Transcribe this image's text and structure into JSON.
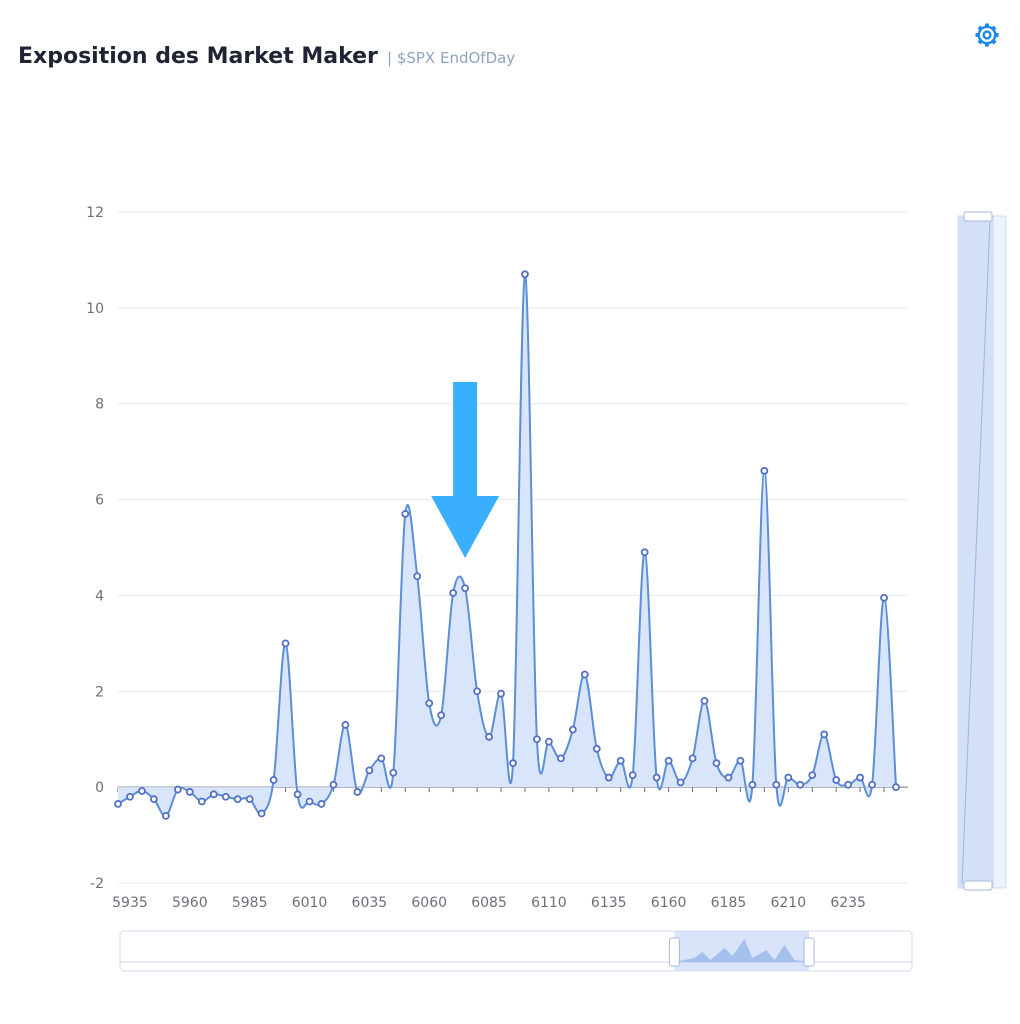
{
  "header": {
    "title": "Exposition des Market Maker",
    "subtitle": "| $SPX EndOfDay"
  },
  "toolbar": {
    "settings_icon": "gear-icon"
  },
  "colors": {
    "line": "#5b8fd6",
    "area": "#d9e5fb",
    "point_stroke": "#5470c6",
    "grid": "#e6e9f0",
    "axis": "#6e7079",
    "arrow": "#3aaeff",
    "gear": "#1e88e5"
  },
  "annotation": {
    "type": "arrow",
    "direction": "down",
    "at_x": 6075,
    "icon": "down-arrow-icon"
  },
  "chart_data": {
    "type": "area",
    "x": [
      5930,
      5935,
      5940,
      5945,
      5950,
      5955,
      5960,
      5965,
      5970,
      5975,
      5980,
      5985,
      5990,
      5995,
      6000,
      6005,
      6010,
      6015,
      6020,
      6025,
      6030,
      6035,
      6040,
      6045,
      6050,
      6055,
      6060,
      6065,
      6070,
      6075,
      6080,
      6085,
      6090,
      6095,
      6100,
      6105,
      6110,
      6115,
      6120,
      6125,
      6130,
      6135,
      6140,
      6145,
      6150,
      6155,
      6160,
      6165,
      6170,
      6175,
      6180,
      6185,
      6190,
      6195,
      6200,
      6205,
      6210,
      6215,
      6220,
      6225,
      6230,
      6235,
      6240,
      6245,
      6250,
      6255
    ],
    "values": [
      -0.35,
      -0.2,
      -0.08,
      -0.25,
      -0.6,
      -0.05,
      -0.1,
      -0.3,
      -0.15,
      -0.2,
      -0.25,
      -0.25,
      -0.55,
      0.15,
      3.0,
      -0.15,
      -0.3,
      -0.35,
      0.05,
      1.3,
      -0.1,
      0.35,
      0.6,
      0.3,
      5.7,
      4.4,
      1.75,
      1.5,
      4.05,
      4.15,
      2.0,
      1.05,
      1.95,
      0.5,
      10.7,
      1.0,
      0.95,
      0.6,
      1.2,
      2.35,
      0.8,
      0.2,
      0.55,
      0.25,
      4.9,
      0.2,
      0.55,
      0.1,
      0.6,
      1.8,
      0.5,
      0.2,
      0.55,
      0.05,
      6.6,
      0.05,
      0.2,
      0.05,
      0.25,
      1.1,
      0.15,
      0.05,
      0.2,
      0.05,
      3.95,
      0.0
    ],
    "xticks": [
      5935,
      5960,
      5985,
      6010,
      6035,
      6060,
      6085,
      6110,
      6135,
      6160,
      6185,
      6210,
      6235
    ],
    "yticks": [
      -2,
      0,
      2,
      4,
      6,
      8,
      10,
      12
    ],
    "ylim": [
      -2,
      12
    ],
    "xlim": [
      5930,
      6260
    ],
    "grid": true,
    "legend": "none",
    "data_zoom": {
      "horizontal": {
        "start_percent": 70,
        "end_percent": 87
      },
      "vertical": {
        "start_percent": 0,
        "end_percent": 100
      }
    }
  }
}
